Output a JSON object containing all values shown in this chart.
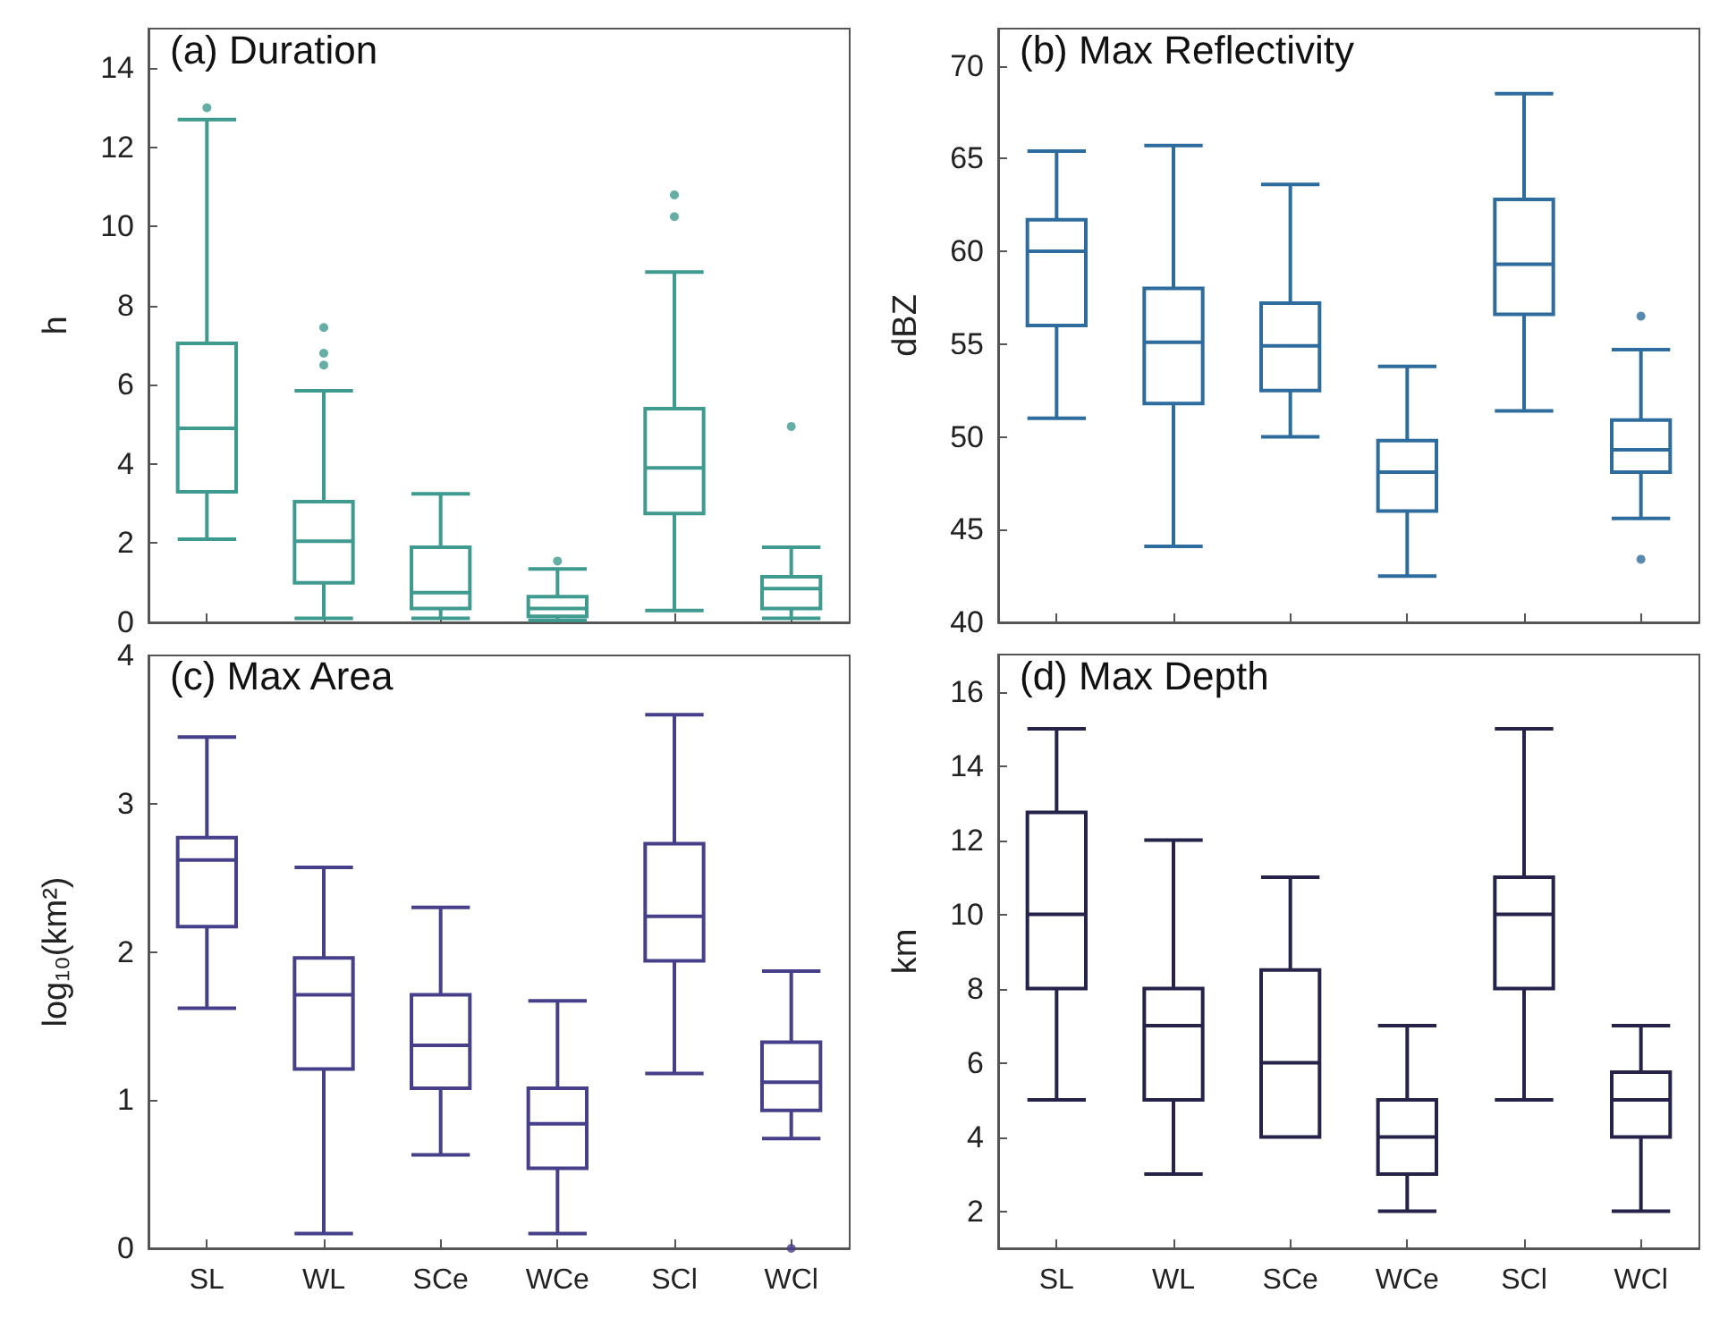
{
  "chart_data": [
    {
      "type": "box",
      "title": "(a) Duration",
      "ylabel": "h",
      "categories": [
        null,
        null,
        null,
        null,
        null,
        null
      ],
      "ylim": [
        0,
        15
      ],
      "yticks": [
        0,
        2,
        4,
        6,
        8,
        10,
        12,
        14
      ],
      "grid": false,
      "series": [
        {
          "color": "#3f9a8f",
          "boxes": [
            {
              "low": 2.1,
              "q1": 3.3,
              "median": 4.9,
              "q3": 7.05,
              "high": 12.7,
              "outliers": [
                13.0
              ]
            },
            {
              "low": 0.1,
              "q1": 1.0,
              "median": 2.05,
              "q3": 3.05,
              "high": 5.85,
              "outliers": [
                6.5,
                6.8,
                7.45
              ]
            },
            {
              "low": 0.1,
              "q1": 0.35,
              "median": 0.75,
              "q3": 1.9,
              "high": 3.25
            },
            {
              "low": 0.05,
              "q1": 0.15,
              "median": 0.35,
              "q3": 0.65,
              "high": 1.35,
              "outliers": [
                1.55
              ]
            },
            {
              "low": 0.3,
              "q1": 2.75,
              "median": 3.9,
              "q3": 5.4,
              "high": 8.85,
              "outliers": [
                10.25,
                10.8
              ]
            },
            {
              "low": 0.1,
              "q1": 0.35,
              "median": 0.85,
              "q3": 1.15,
              "high": 1.9,
              "outliers": [
                4.95
              ]
            }
          ]
        }
      ]
    },
    {
      "type": "box",
      "title": "(b) Max Reflectivity",
      "ylabel": "dBZ",
      "categories": [
        null,
        null,
        null,
        null,
        null,
        null
      ],
      "ylim": [
        40,
        72
      ],
      "yticks": [
        40,
        45,
        50,
        55,
        60,
        65,
        70
      ],
      "grid": false,
      "series": [
        {
          "color": "#2e6c9e",
          "boxes": [
            {
              "low": 51,
              "q1": 56,
              "median": 60,
              "q3": 61.7,
              "high": 65.4
            },
            {
              "low": 44.1,
              "q1": 51.8,
              "median": 55.1,
              "q3": 58,
              "high": 65.7
            },
            {
              "low": 50,
              "q1": 52.5,
              "median": 54.9,
              "q3": 57.2,
              "high": 63.6
            },
            {
              "low": 42.5,
              "q1": 46,
              "median": 48.1,
              "q3": 49.8,
              "high": 53.8
            },
            {
              "low": 51.4,
              "q1": 56.6,
              "median": 59.3,
              "q3": 62.8,
              "high": 68.5
            },
            {
              "low": 45.6,
              "q1": 48.1,
              "median": 49.3,
              "q3": 50.9,
              "high": 54.7,
              "outliers": [
                56.5,
                43.4
              ]
            }
          ]
        }
      ]
    },
    {
      "type": "box",
      "title": "(c) Max Area",
      "ylabel": "log₁₀(km²)",
      "categories": [
        "SL",
        "WL",
        "SCe",
        "WCe",
        "SCl",
        "WCl"
      ],
      "ylim": [
        0,
        4
      ],
      "yticks": [
        0,
        1,
        2,
        3,
        4
      ],
      "grid": false,
      "series": [
        {
          "color": "#46408a",
          "boxes": [
            {
              "low": 1.62,
              "q1": 2.17,
              "median": 2.62,
              "q3": 2.77,
              "high": 3.45
            },
            {
              "low": 0.1,
              "q1": 1.21,
              "median": 1.71,
              "q3": 1.96,
              "high": 2.57
            },
            {
              "low": 0.63,
              "q1": 1.08,
              "median": 1.37,
              "q3": 1.71,
              "high": 2.3
            },
            {
              "low": 0.1,
              "q1": 0.54,
              "median": 0.84,
              "q3": 1.08,
              "high": 1.67
            },
            {
              "low": 1.18,
              "q1": 1.94,
              "median": 2.24,
              "q3": 2.73,
              "high": 3.6
            },
            {
              "low": 0.74,
              "q1": 0.93,
              "median": 1.12,
              "q3": 1.39,
              "high": 1.87,
              "outliers": [
                0
              ]
            }
          ]
        }
      ]
    },
    {
      "type": "box",
      "title": "(d) Max Depth",
      "ylabel": "km",
      "categories": [
        "SL",
        "WL",
        "SCe",
        "WCe",
        "SCl",
        "WCl"
      ],
      "ylim": [
        1,
        17
      ],
      "yticks": [
        2,
        4,
        6,
        8,
        10,
        12,
        14,
        16
      ],
      "grid": false,
      "series": [
        {
          "color": "#25234a",
          "boxes": [
            {
              "low": 5,
              "q1": 8,
              "median": 10,
              "q3": 12.75,
              "high": 15
            },
            {
              "low": 3,
              "q1": 5,
              "median": 7,
              "q3": 8,
              "high": 12
            },
            {
              "low": 4,
              "q1": 4,
              "median": 6,
              "q3": 8.5,
              "high": 11
            },
            {
              "low": 2,
              "q1": 3,
              "median": 4,
              "q3": 5,
              "high": 7
            },
            {
              "low": 5,
              "q1": 8,
              "median": 10,
              "q3": 11,
              "high": 15
            },
            {
              "low": 2,
              "q1": 4,
              "median": 5,
              "q3": 5.75,
              "high": 7
            }
          ]
        }
      ]
    }
  ]
}
